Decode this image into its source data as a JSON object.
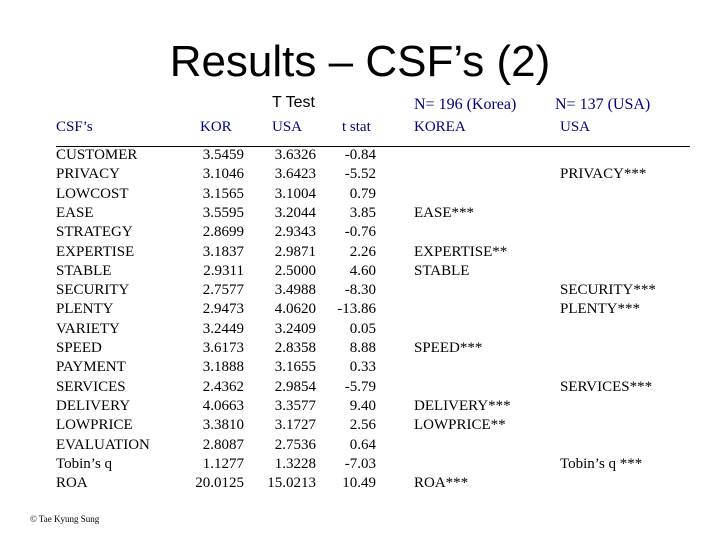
{
  "slide": {
    "title": "Results – CSF’s (2)",
    "footer": "© Tae Kyung Sung"
  },
  "headers": {
    "ttest": "T Test",
    "csf": "CSF’s",
    "kor": "KOR",
    "usa": "USA",
    "tstat": "t stat",
    "n_korea": "N= 196 (Korea)",
    "n_usa": "N= 137 (USA)",
    "korea": "KOREA",
    "usa_col": "USA"
  },
  "table": {
    "rows": [
      {
        "csf": "CUSTOMER",
        "kor": "3.5459",
        "usa": "3.6326",
        "t": "-0.84"
      },
      {
        "csf": "PRIVACY",
        "kor": "3.1046",
        "usa": "3.6423",
        "t": "-5.52"
      },
      {
        "csf": "LOWCOST",
        "kor": "3.1565",
        "usa": "3.1004",
        "t": "0.79"
      },
      {
        "csf": "EASE",
        "kor": "3.5595",
        "usa": "3.2044",
        "t": "3.85"
      },
      {
        "csf": "STRATEGY",
        "kor": "2.8699",
        "usa": "2.9343",
        "t": "-0.76"
      },
      {
        "csf": "EXPERTISE",
        "kor": "3.1837",
        "usa": "2.9871",
        "t": "2.26"
      },
      {
        "csf": "STABLE",
        "kor": "2.9311",
        "usa": "2.5000",
        "t": "4.60"
      },
      {
        "csf": "SECURITY",
        "kor": "2.7577",
        "usa": "3.4988",
        "t": "-8.30"
      },
      {
        "csf": "PLENTY",
        "kor": "2.9473",
        "usa": "4.0620",
        "t": "-13.86"
      },
      {
        "csf": "VARIETY",
        "kor": "3.2449",
        "usa": "3.2409",
        "t": "0.05"
      },
      {
        "csf": "SPEED",
        "kor": "3.6173",
        "usa": "2.8358",
        "t": "8.88"
      },
      {
        "csf": "PAYMENT",
        "kor": "3.1888",
        "usa": "3.1655",
        "t": "0.33"
      },
      {
        "csf": "SERVICES",
        "kor": "2.4362",
        "usa": "2.9854",
        "t": "-5.79"
      },
      {
        "csf": "DELIVERY",
        "kor": "4.0663",
        "usa": "3.3577",
        "t": "9.40"
      },
      {
        "csf": "LOWPRICE",
        "kor": "3.3810",
        "usa": "3.1727",
        "t": "2.56"
      },
      {
        "csf": "EVALUATION",
        "kor": "2.8087",
        "usa": "2.7536",
        "t": "0.64"
      },
      {
        "csf": "Tobin’s q",
        "kor": "1.1277",
        "usa": "1.3228",
        "t": "-7.03"
      },
      {
        "csf": "ROA",
        "kor": "20.0125",
        "usa": "15.0213",
        "t": "10.49"
      }
    ],
    "korea_significant": [
      {
        "row": 3,
        "label": "EASE***"
      },
      {
        "row": 5,
        "label": "EXPERTISE**"
      },
      {
        "row": 6,
        "label": "STABLE"
      },
      {
        "row": 10,
        "label": "SPEED***"
      },
      {
        "row": 13,
        "label": "DELIVERY***"
      },
      {
        "row": 14,
        "label": "LOWPRICE**"
      },
      {
        "row": 17,
        "label": "ROA***"
      }
    ],
    "usa_significant": [
      {
        "row": 1,
        "label": "PRIVACY***"
      },
      {
        "row": 7,
        "label": "SECURITY***"
      },
      {
        "row": 8,
        "label": "PLENTY***"
      },
      {
        "row": 12,
        "label": "SERVICES***"
      },
      {
        "row": 16,
        "label": "Tobin’s q ***"
      }
    ]
  }
}
